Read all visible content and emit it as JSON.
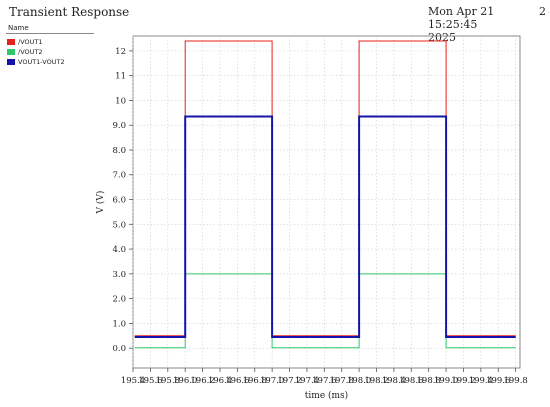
{
  "header": {
    "title": "Transient Response",
    "timestamp_line1": "Mon Apr 21 15:25:45",
    "timestamp_line2": "2025",
    "page_number": "2"
  },
  "legend": {
    "header": "Name",
    "items": [
      {
        "label": "/VOUT1",
        "color": "#e8201c"
      },
      {
        "label": "/VOUT2",
        "color": "#2ec86a"
      },
      {
        "label": "VOUT1-VOUT2",
        "color": "#1414a8"
      }
    ]
  },
  "chart_data": {
    "type": "line",
    "title": "Transient Response",
    "xlabel": "time (ms)",
    "ylabel": "V (V)",
    "xlim": [
      195.4,
      199.85
    ],
    "ylim": [
      -0.8,
      12.6
    ],
    "grid": true,
    "xticks": [
      195.4,
      195.6,
      195.8,
      196.0,
      196.2,
      196.4,
      196.6,
      196.8,
      197.0,
      197.2,
      197.4,
      197.6,
      197.8,
      198.0,
      198.2,
      198.4,
      198.6,
      198.8,
      199.0,
      199.2,
      199.4,
      199.6,
      199.8
    ],
    "xtick_labels": [
      "195.4",
      "195.6",
      "195.8",
      "196.0",
      "196.2",
      "196.4",
      "196.6",
      "196.8",
      "197.0",
      "197.2",
      "197.4",
      "197.6",
      "197.8",
      "198.0",
      "198.2",
      "198.4",
      "198.6",
      "198.8",
      "199.0",
      "199.2",
      "199.4",
      "199.6",
      "199.8"
    ],
    "yticks": [
      0,
      1,
      2,
      3,
      4,
      5,
      6,
      7,
      8,
      9,
      10,
      11,
      12
    ],
    "ytick_labels": [
      "0.0",
      "1.0",
      "2.0",
      "3.0",
      "4.0",
      "5.0",
      "6.0",
      "7.0",
      "8.0",
      "9.0",
      "10",
      "11",
      "12"
    ],
    "series": [
      {
        "name": "/VOUT1",
        "color": "#e8201c",
        "width": 1,
        "x": [
          195.42,
          196.0,
          196.0,
          197.0,
          197.0,
          198.0,
          198.0,
          199.0,
          199.0,
          199.8
        ],
        "y": [
          0.5,
          0.5,
          12.4,
          12.4,
          0.5,
          0.5,
          12.4,
          12.4,
          0.5,
          0.5
        ]
      },
      {
        "name": "/VOUT2",
        "color": "#2ec86a",
        "width": 1,
        "x": [
          195.42,
          196.0,
          196.0,
          197.0,
          197.0,
          198.0,
          198.0,
          199.0,
          199.0,
          199.8
        ],
        "y": [
          0.02,
          0.02,
          3.0,
          3.0,
          0.02,
          0.02,
          3.0,
          3.0,
          0.02,
          0.02
        ]
      },
      {
        "name": "VOUT1-VOUT2",
        "color": "#1414a8",
        "width": 2,
        "x": [
          195.42,
          196.0,
          196.0,
          197.0,
          197.0,
          198.0,
          198.0,
          199.0,
          199.0,
          199.8
        ],
        "y": [
          0.45,
          0.45,
          9.35,
          9.35,
          0.45,
          0.45,
          9.35,
          9.35,
          0.45,
          0.45
        ]
      }
    ]
  }
}
